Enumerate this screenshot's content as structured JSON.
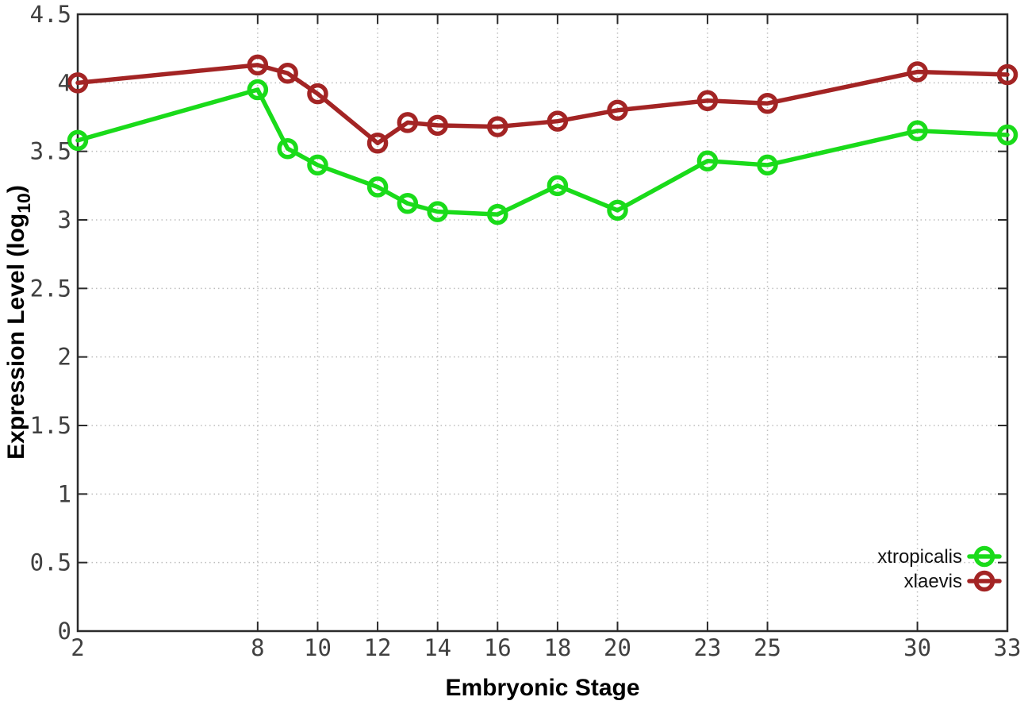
{
  "chart_data": {
    "type": "line",
    "xlabel": "Embryonic Stage",
    "ylabel": "Expression Level (log10)",
    "ylabel_parts": [
      "Expression Level (log",
      "10",
      ")"
    ],
    "xlim": [
      2,
      33
    ],
    "ylim": [
      0,
      4.5
    ],
    "grid": true,
    "legend_position": "bottom-right",
    "xticks": [
      2,
      8,
      10,
      12,
      14,
      16,
      18,
      20,
      23,
      25,
      30,
      33
    ],
    "yticks": [
      0,
      0.5,
      1,
      1.5,
      2,
      2.5,
      3,
      3.5,
      4,
      4.5
    ],
    "x": [
      2,
      8,
      9,
      10,
      12,
      13,
      14,
      16,
      18,
      20,
      23,
      25,
      30,
      33
    ],
    "series": [
      {
        "name": "xtropicalis",
        "color": "#1adb1a",
        "values": [
          3.58,
          3.95,
          3.52,
          3.4,
          3.24,
          3.12,
          3.06,
          3.04,
          3.25,
          3.07,
          3.43,
          3.4,
          3.65,
          3.62
        ]
      },
      {
        "name": "xlaevis",
        "color": "#a32424",
        "values": [
          4.0,
          4.13,
          4.07,
          3.92,
          3.56,
          3.71,
          3.69,
          3.68,
          3.72,
          3.8,
          3.87,
          3.85,
          4.08,
          4.06
        ]
      }
    ],
    "colors": {
      "axis": "#2b2b2b",
      "grid": "#bdbdbd",
      "tick_label": "#404040"
    }
  }
}
